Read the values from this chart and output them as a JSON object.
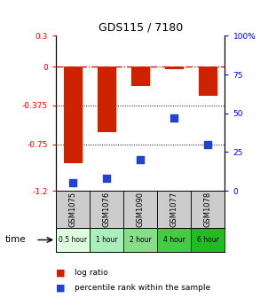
{
  "title": "GDS115 / 7180",
  "samples": [
    "GSM1075",
    "GSM1076",
    "GSM1090",
    "GSM1077",
    "GSM1078"
  ],
  "time_labels": [
    "0.5 hour",
    "1 hour",
    "2 hour",
    "4 hour",
    "6 hour"
  ],
  "time_colors": [
    "#ddffdd",
    "#aaeebb",
    "#88dd88",
    "#44cc44",
    "#22bb22"
  ],
  "log_ratio": [
    -0.93,
    -0.63,
    -0.19,
    -0.02,
    -0.28
  ],
  "percentile_rank": [
    5,
    8,
    20,
    47,
    30
  ],
  "bar_color": "#cc2200",
  "dot_color": "#2244cc",
  "ylim_left": [
    -1.2,
    0.3
  ],
  "ylim_right": [
    0,
    100
  ],
  "yticks_left": [
    0.3,
    0,
    -0.375,
    -0.75,
    -1.2
  ],
  "ytick_labels_left": [
    "0.3",
    "0",
    "-0.375",
    "-0.75",
    "-1.2"
  ],
  "yticks_right": [
    100,
    75,
    50,
    25,
    0
  ],
  "ytick_labels_right": [
    "100%",
    "75",
    "50",
    "25",
    "0"
  ]
}
